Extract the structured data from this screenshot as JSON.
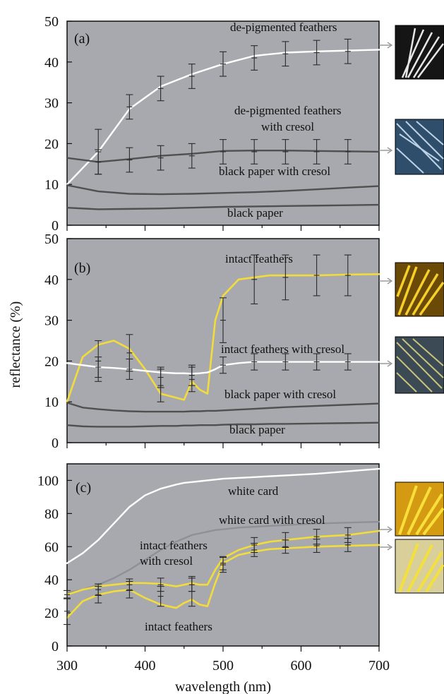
{
  "figure": {
    "ylabel": "reflectance (%)",
    "xlabel": "wavelength (nm)"
  },
  "colors": {
    "plot_bg": "#a8a9ae",
    "white": "#ffffff",
    "dark": "#505050",
    "mid": "#8f9095",
    "yellow": "#f2dc3c",
    "errorbar": "#2a2a2a"
  },
  "chart_data": [
    {
      "type": "line",
      "panel": "(a)",
      "xlim": [
        300,
        700
      ],
      "ylim": [
        0,
        50
      ],
      "yticks": [
        "0",
        "10",
        "20",
        "30",
        "40",
        "50"
      ],
      "x": [
        300,
        340,
        380,
        420,
        460,
        500,
        540,
        580,
        620,
        660,
        700
      ],
      "series": [
        {
          "name": "de-pigmented feathers",
          "color": "white",
          "values": [
            10,
            18,
            28.5,
            34,
            37,
            39.5,
            41.5,
            42.3,
            42.6,
            42.8,
            43
          ],
          "error_x": [
            340,
            380,
            420,
            460,
            500,
            540,
            580,
            620,
            660
          ],
          "error_y": [
            18,
            29,
            33.5,
            36.5,
            39.5,
            41,
            42,
            42.3,
            42.6
          ],
          "error_half": [
            5.5,
            3,
            3,
            3,
            3,
            3,
            3,
            3,
            3
          ]
        },
        {
          "name": "de-pigmented feathers with cresol",
          "color": "dark",
          "values": [
            16.5,
            15.5,
            16.2,
            17,
            17.5,
            18.2,
            18.3,
            18.3,
            18.2,
            18.1,
            18
          ],
          "error_x": [
            340,
            380,
            420,
            460,
            500,
            540,
            580,
            620,
            660
          ],
          "error_y": [
            15.5,
            16,
            16.5,
            17,
            18,
            18,
            18,
            18,
            18
          ],
          "error_half": [
            3,
            3,
            3,
            3,
            3,
            3,
            3,
            3,
            3
          ]
        },
        {
          "name": "black paper with cresol",
          "color": "dark",
          "values": [
            9.8,
            8.3,
            7.7,
            7.6,
            7.7,
            7.9,
            8.1,
            8.4,
            8.8,
            9.2,
            9.6
          ]
        },
        {
          "name": "black paper",
          "color": "dark",
          "values": [
            4.3,
            3.9,
            4,
            4.1,
            4.3,
            4.5,
            4.6,
            4.7,
            4.8,
            4.9,
            5
          ]
        }
      ],
      "annotations": [
        "de-pigmented feathers",
        "de-pigmented feathers",
        "with cresol",
        "black paper with cresol",
        "black paper"
      ]
    },
    {
      "type": "line",
      "panel": "(b)",
      "xlim": [
        300,
        700
      ],
      "ylim": [
        0,
        50
      ],
      "yticks": [
        "0",
        "10",
        "20",
        "30",
        "40",
        "50"
      ],
      "x": [
        300,
        320,
        340,
        360,
        380,
        400,
        420,
        440,
        450,
        460,
        470,
        480,
        490,
        500,
        520,
        540,
        560,
        580,
        620,
        660,
        700
      ],
      "series": [
        {
          "name": "intact feathers",
          "color": "yellow",
          "values": [
            10,
            21,
            24,
            25,
            23,
            18,
            12,
            11,
            10.5,
            15,
            13,
            12,
            30,
            36,
            40,
            40.5,
            41,
            41,
            41,
            41.2,
            41.3
          ],
          "error_x": [
            340,
            380,
            420,
            460,
            500,
            540,
            580,
            620,
            660
          ],
          "error_y": [
            20,
            22,
            14,
            15.5,
            30,
            40,
            40.5,
            41,
            41
          ],
          "error_half": [
            5,
            4.5,
            4,
            3,
            5.5,
            6,
            5.5,
            5,
            5
          ]
        },
        {
          "name": "intact feathers with cresol",
          "color": "white",
          "values": [
            19.5,
            19,
            18.5,
            18.3,
            18,
            17.6,
            17.2,
            17,
            17,
            16.9,
            17,
            17.2,
            18,
            19,
            19.5,
            19.8,
            19.8,
            19.8,
            19.8,
            19.8,
            19.8
          ],
          "error_x": [
            340,
            380,
            420,
            460,
            500,
            540,
            580,
            620,
            660
          ],
          "error_y": [
            18.5,
            18,
            16,
            16.5,
            19,
            19.8,
            19.8,
            19.8,
            19.8
          ],
          "error_half": [
            2.5,
            2.5,
            2.5,
            2.5,
            2,
            2,
            2,
            2,
            2
          ]
        },
        {
          "name": "black paper with cresol",
          "color": "dark",
          "values": [
            9.8,
            8.6,
            8.2,
            7.9,
            7.7,
            7.6,
            7.6,
            7.6,
            7.6,
            7.7,
            7.7,
            7.8,
            7.8,
            7.9,
            8.1,
            8.3,
            8.5,
            8.7,
            9,
            9.3,
            9.6
          ]
        },
        {
          "name": "black paper",
          "color": "dark",
          "values": [
            4.3,
            4,
            3.9,
            3.9,
            3.9,
            4,
            4.1,
            4.1,
            4.2,
            4.2,
            4.3,
            4.3,
            4.3,
            4.4,
            4.5,
            4.5,
            4.6,
            4.6,
            4.7,
            4.8,
            4.9
          ]
        }
      ],
      "annotations": [
        "intact feathers",
        "intact feathers with cresol",
        "black paper with cresol",
        "black paper"
      ]
    },
    {
      "type": "line",
      "panel": "(c)",
      "xlim": [
        300,
        700
      ],
      "ylim": [
        0,
        110
      ],
      "yticks": [
        "0",
        "20",
        "40",
        "60",
        "80",
        "100"
      ],
      "xticks": [
        "300",
        "400",
        "500",
        "600",
        "700"
      ],
      "x": [
        300,
        320,
        340,
        360,
        380,
        400,
        420,
        440,
        450,
        460,
        470,
        480,
        490,
        500,
        520,
        540,
        560,
        580,
        620,
        660,
        700
      ],
      "series": [
        {
          "name": "white card",
          "color": "white",
          "values": [
            50,
            56,
            64,
            74,
            84,
            91,
            95,
            97.5,
            98.5,
            99,
            99.5,
            100,
            100.5,
            101,
            101.5,
            102,
            102.5,
            103,
            104,
            105.5,
            107
          ]
        },
        {
          "name": "white card with cresol",
          "color": "mid",
          "values": [
            32,
            34,
            37,
            41,
            46,
            52,
            58,
            63,
            65,
            67,
            68,
            69,
            70,
            70.5,
            71.5,
            72,
            72.5,
            73,
            74,
            74.5,
            75
          ]
        },
        {
          "name": "intact feathers with cresol",
          "color": "yellow",
          "values": [
            31,
            34,
            36,
            37,
            38,
            38,
            37.5,
            36,
            37,
            38,
            37,
            37,
            46,
            53,
            58,
            61,
            63,
            64,
            66,
            67,
            69.5
          ],
          "error_x": [
            300,
            340,
            380,
            420,
            460,
            500,
            540,
            580,
            620,
            660
          ],
          "error_y": [
            31,
            34,
            37,
            37,
            37,
            49,
            61,
            64,
            66,
            67
          ],
          "error_half": [
            2.5,
            3.5,
            3.5,
            4,
            4,
            4.5,
            4.5,
            4.5,
            4.5,
            4.5
          ]
        },
        {
          "name": "intact feathers",
          "color": "yellow",
          "values": [
            17,
            27,
            31,
            33,
            34,
            29,
            25,
            23,
            26,
            28,
            25,
            24,
            38,
            50,
            55,
            57,
            58.5,
            59,
            60,
            60.5,
            61
          ],
          "error_x": [
            300,
            340,
            380,
            420,
            460,
            500,
            540,
            580,
            620,
            660
          ],
          "error_y": [
            21,
            31,
            34,
            30,
            33,
            50,
            58,
            60,
            60.5,
            61
          ],
          "error_half": [
            8,
            5,
            5,
            6,
            9,
            4,
            4,
            4,
            4,
            4
          ]
        }
      ],
      "annotations": [
        "white card",
        "white card with cresol",
        "intact feathers",
        "with cresol",
        "intact feathers"
      ]
    }
  ]
}
